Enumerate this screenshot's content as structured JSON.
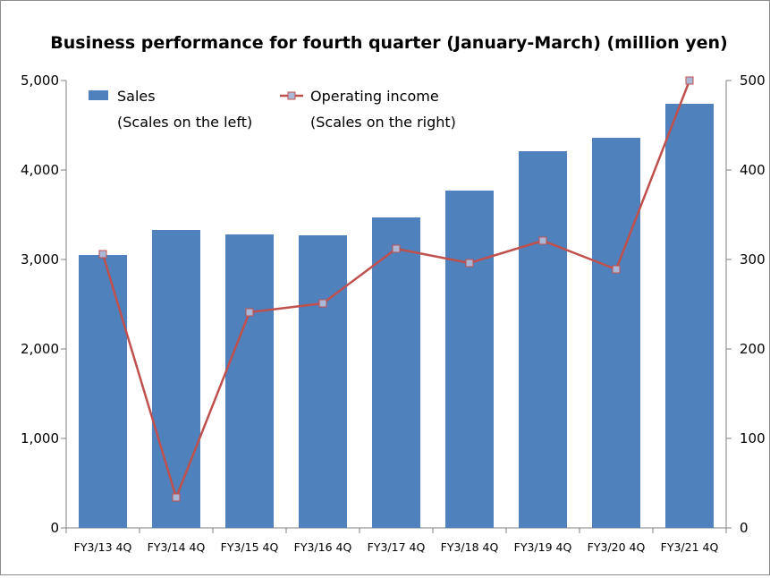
{
  "chart_data": {
    "type": "bar+line",
    "title": "Business performance for fourth quarter (January-March)  (million yen)",
    "categories": [
      "FY3/13 4Q",
      "FY3/14 4Q",
      "FY3/15 4Q",
      "FY3/16 4Q",
      "FY3/17 4Q",
      "FY3/18 4Q",
      "FY3/19 4Q",
      "FY3/20 4Q",
      "FY3/21 4Q"
    ],
    "series": [
      {
        "name": "Sales",
        "note": "(Scales on the left)",
        "kind": "bar",
        "axis": "left",
        "color": "#4f81bd",
        "values": [
          3050,
          3330,
          3280,
          3270,
          3470,
          3770,
          4210,
          4360,
          4740
        ]
      },
      {
        "name": "Operating income",
        "note": "(Scales on the right)",
        "kind": "line",
        "axis": "right",
        "color": "#c0504d",
        "marker_color": "#aab7d6",
        "values": [
          306,
          34,
          241,
          251,
          312,
          296,
          321,
          289,
          500
        ]
      }
    ],
    "y_left": {
      "min": 0,
      "max": 5000,
      "ticks": [
        0,
        1000,
        2000,
        3000,
        4000,
        5000
      ],
      "tick_labels": [
        "0",
        "1,000",
        "2,000",
        "3,000",
        "4,000",
        "5,000"
      ]
    },
    "y_right": {
      "min": 0,
      "max": 500,
      "ticks": [
        0,
        100,
        200,
        300,
        400,
        500
      ],
      "tick_labels": [
        "0",
        "100",
        "200",
        "300",
        "400",
        "500"
      ]
    },
    "grid": false,
    "legend_position": "top-left"
  }
}
